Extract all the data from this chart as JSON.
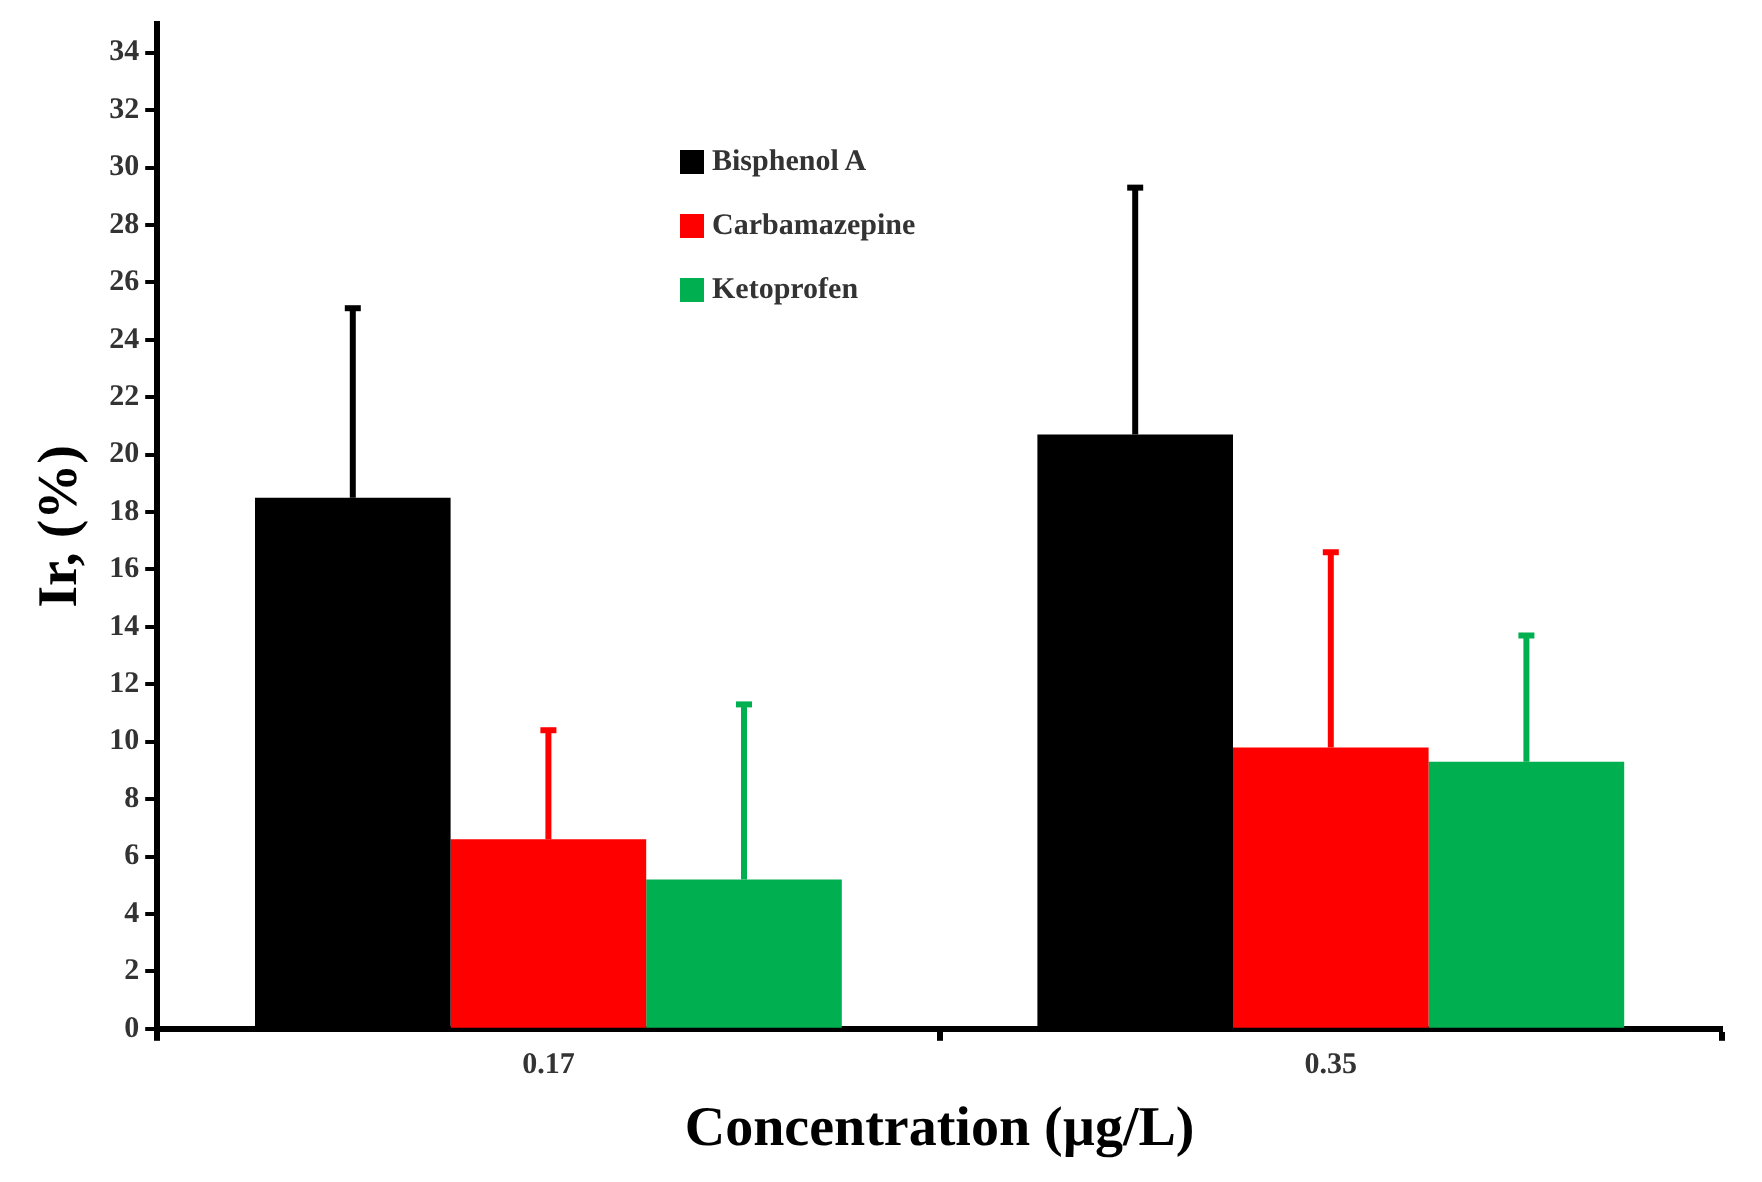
{
  "chart_data": {
    "type": "bar",
    "xlabel": "Concentration (µg/L)",
    "ylabel": "Ir, (%)",
    "categories": [
      "0.17",
      "0.35"
    ],
    "series": [
      {
        "name": "Bisphenol A",
        "color": "#000000",
        "values": [
          18.5,
          20.7
        ],
        "errors": [
          [
            18.5,
            25.1
          ],
          [
            20.7,
            29.3
          ]
        ]
      },
      {
        "name": "Carbamazepine",
        "color": "#ff0000",
        "values": [
          6.6,
          9.8
        ],
        "errors": [
          [
            6.6,
            10.4
          ],
          [
            9.8,
            16.6
          ]
        ]
      },
      {
        "name": "Ketoprofen",
        "color": "#00b050",
        "values": [
          5.2,
          9.3
        ],
        "errors": [
          [
            5.2,
            11.3
          ],
          [
            9.3,
            13.7
          ]
        ]
      }
    ],
    "ylim": [
      0,
      35
    ],
    "yticks": [
      0,
      2,
      4,
      6,
      8,
      10,
      12,
      14,
      16,
      18,
      20,
      22,
      24,
      26,
      28,
      30,
      32,
      34
    ],
    "grid": false,
    "legend": "top"
  }
}
